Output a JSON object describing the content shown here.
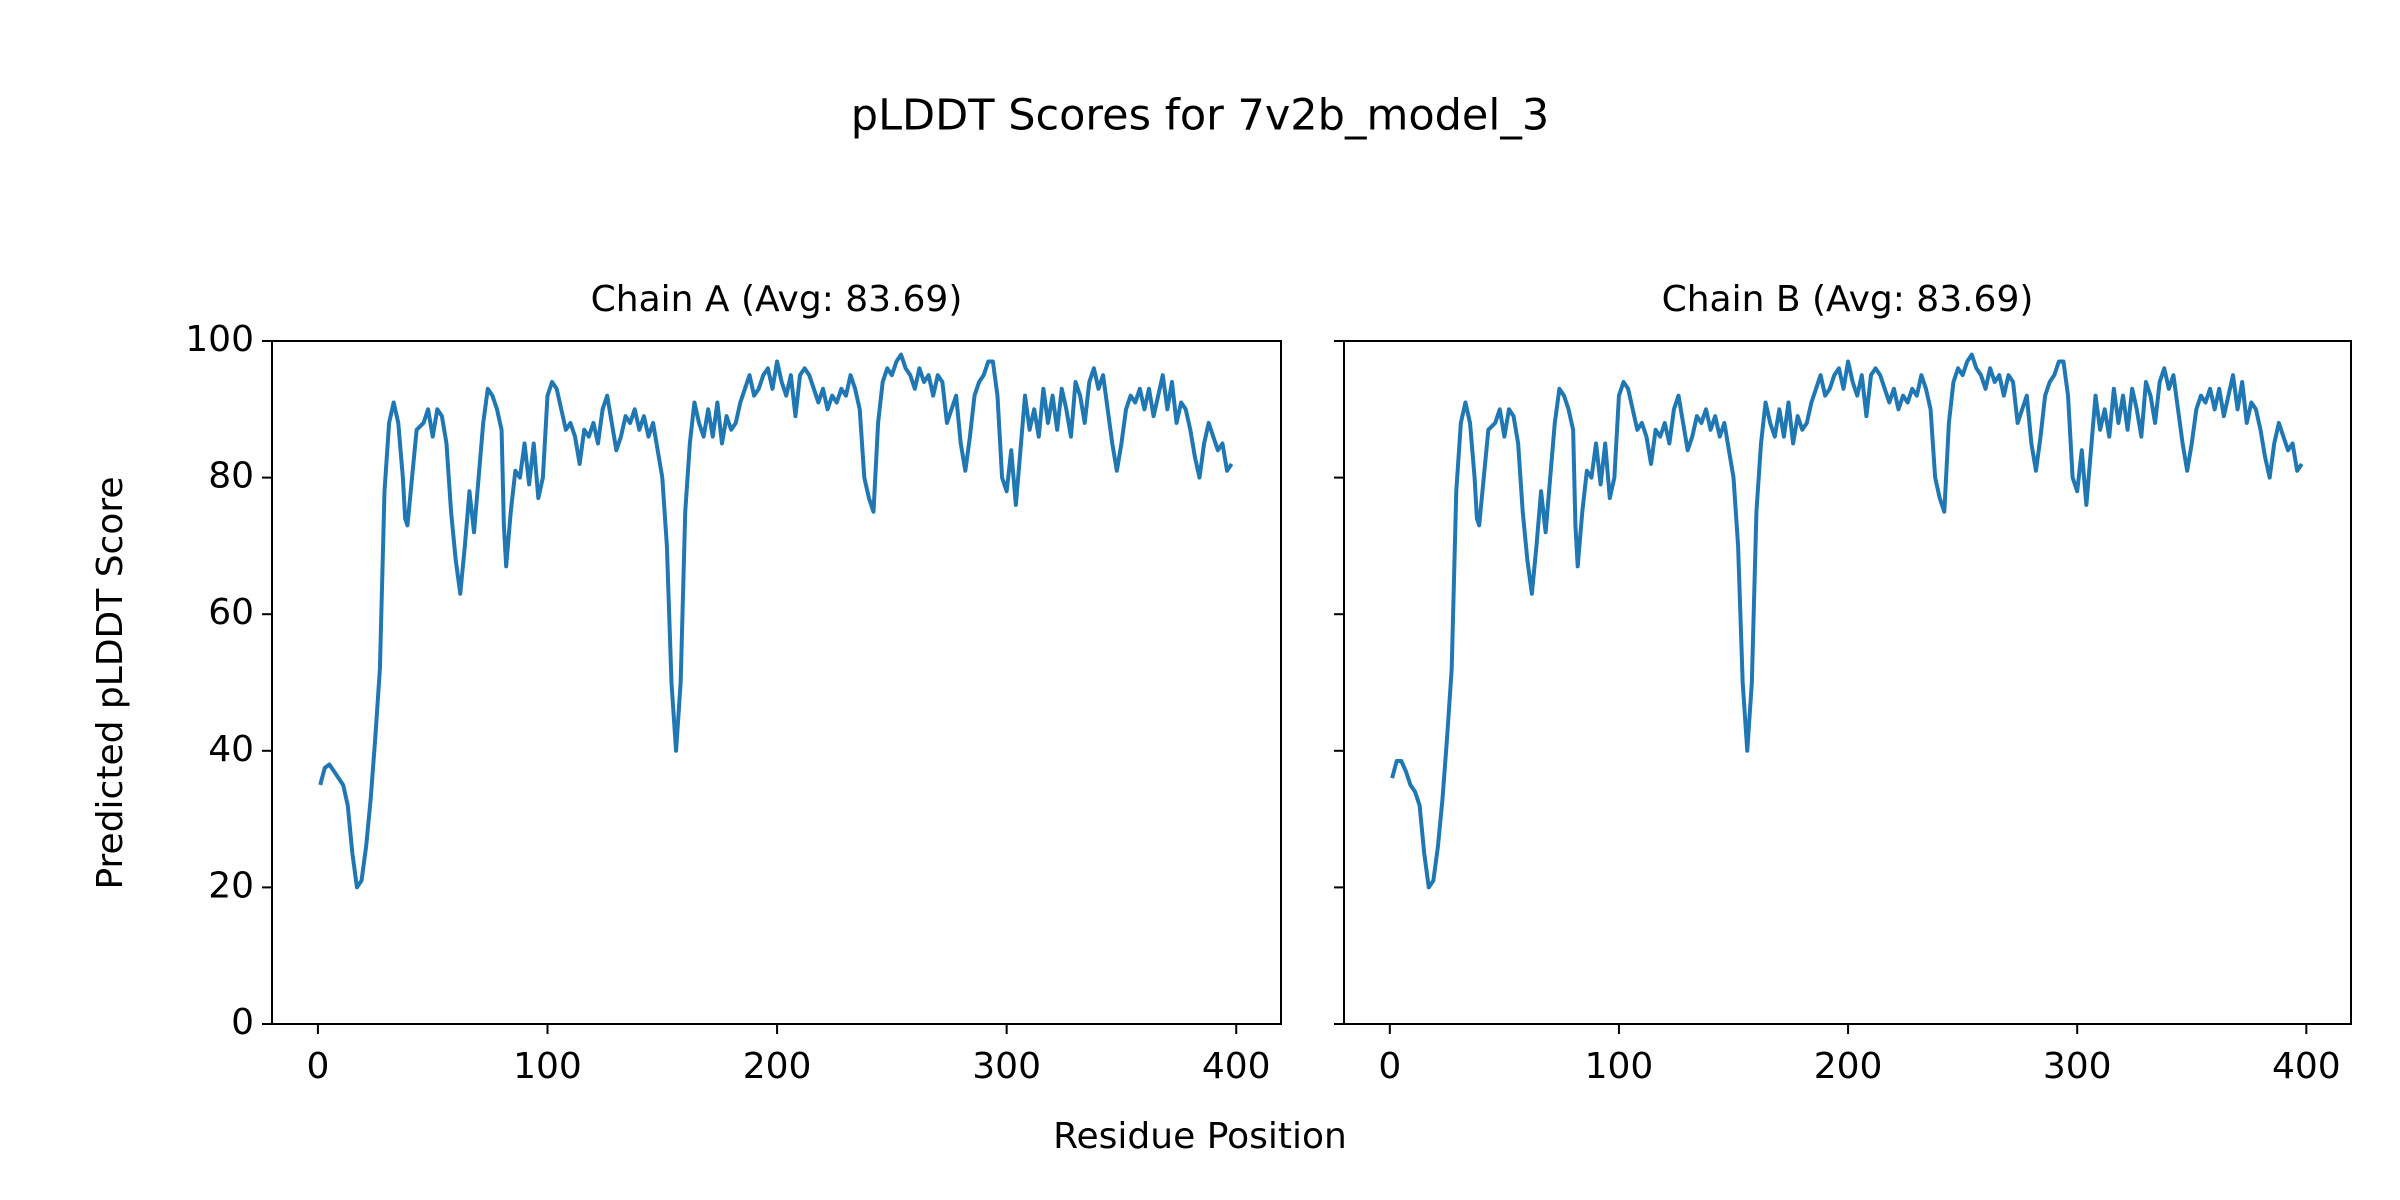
{
  "title": "pLDDT Scores for 7v2b_model_3",
  "xlabel": "Residue Position",
  "ylabel": "Predicted pLDDT Score",
  "chart_data": [
    {
      "type": "line",
      "title": "Chain A (Avg: 83.69)",
      "color": "#1f77b4",
      "x": [
        1,
        3,
        5,
        7,
        9,
        11,
        13,
        15,
        17,
        19,
        21,
        23,
        25,
        27,
        29,
        31,
        33,
        35,
        37,
        38,
        39,
        41,
        43,
        46,
        48,
        50,
        52,
        54,
        56,
        58,
        60,
        62,
        64,
        66,
        68,
        70,
        72,
        74,
        76,
        78,
        80,
        81,
        82,
        84,
        86,
        88,
        90,
        92,
        94,
        96,
        98,
        100,
        102,
        104,
        106,
        108,
        110,
        112,
        114,
        116,
        118,
        120,
        122,
        124,
        126,
        128,
        130,
        132,
        134,
        136,
        138,
        140,
        142,
        144,
        146,
        148,
        150,
        152,
        154,
        156,
        158,
        160,
        162,
        164,
        166,
        168,
        170,
        172,
        174,
        176,
        178,
        180,
        182,
        184,
        186,
        188,
        190,
        192,
        194,
        196,
        198,
        200,
        202,
        204,
        206,
        208,
        210,
        212,
        214,
        216,
        218,
        220,
        222,
        224,
        226,
        228,
        230,
        232,
        234,
        236,
        238,
        240,
        242,
        244,
        246,
        248,
        250,
        252,
        254,
        256,
        258,
        260,
        262,
        264,
        266,
        268,
        270,
        272,
        274,
        276,
        278,
        280,
        282,
        284,
        286,
        288,
        290,
        292,
        294,
        296,
        298,
        300,
        302,
        304,
        306,
        308,
        310,
        312,
        314,
        316,
        318,
        320,
        322,
        324,
        326,
        328,
        330,
        332,
        334,
        336,
        338,
        340,
        342,
        344,
        346,
        348,
        350,
        352,
        354,
        356,
        358,
        360,
        362,
        364,
        366,
        368,
        370,
        372,
        374,
        376,
        378,
        380,
        382,
        384,
        386,
        388,
        390,
        392,
        394,
        396,
        398
      ],
      "values": [
        35,
        37.5,
        38,
        37,
        36,
        35,
        32,
        25,
        20,
        21,
        26,
        33,
        42,
        52,
        78,
        88,
        91,
        88,
        80,
        74,
        73,
        80,
        87,
        88,
        90,
        86,
        90,
        89,
        85,
        75,
        68,
        63,
        70,
        78,
        72,
        80,
        88,
        93,
        92,
        90,
        87,
        73,
        67,
        75,
        81,
        80,
        85,
        79,
        85,
        77,
        80,
        92,
        94,
        93,
        90,
        87,
        88,
        86,
        82,
        87,
        86,
        88,
        85,
        90,
        92,
        88,
        84,
        86,
        89,
        88,
        90,
        87,
        89,
        86,
        88,
        84,
        80,
        70,
        50,
        40,
        50,
        75,
        85,
        91,
        88,
        86,
        90,
        86,
        91,
        85,
        89,
        87,
        88,
        91,
        93,
        95,
        92,
        93,
        95,
        96,
        93,
        97,
        94,
        92,
        95,
        89,
        95,
        96,
        95,
        93,
        91,
        93,
        90,
        92,
        91,
        93,
        92,
        95,
        93,
        90,
        80,
        77,
        75,
        88,
        94,
        96,
        95,
        97,
        98,
        96,
        95,
        93,
        96,
        94,
        95,
        92,
        95,
        94,
        88,
        90,
        92,
        85,
        81,
        86,
        92,
        94,
        95,
        97,
        97,
        92,
        80,
        78,
        84,
        76,
        84,
        92,
        87,
        90,
        86,
        93,
        88,
        92,
        87,
        93,
        90,
        86,
        94,
        92,
        88,
        94,
        96,
        93,
        95,
        90,
        85,
        81,
        85,
        90,
        92,
        91,
        93,
        90,
        93,
        89,
        92,
        95,
        90,
        94,
        88,
        91,
        90,
        87,
        83,
        80,
        85,
        88,
        86,
        84,
        85,
        81,
        82
      ],
      "xlim": [
        -20,
        419.5
      ],
      "ylim": [
        0,
        100
      ],
      "xticks": [
        0,
        100,
        200,
        300,
        400
      ],
      "yticks": [
        0,
        20,
        40,
        60,
        80,
        100
      ],
      "show_ytick_labels": true
    },
    {
      "type": "line",
      "title": "Chain B (Avg: 83.69)",
      "color": "#1f77b4",
      "x": [
        1,
        3,
        5,
        7,
        9,
        11,
        13,
        15,
        17,
        19,
        21,
        23,
        25,
        27,
        29,
        31,
        33,
        35,
        37,
        38,
        39,
        41,
        43,
        46,
        48,
        50,
        52,
        54,
        56,
        58,
        60,
        62,
        64,
        66,
        68,
        70,
        72,
        74,
        76,
        78,
        80,
        81,
        82,
        84,
        86,
        88,
        90,
        92,
        94,
        96,
        98,
        100,
        102,
        104,
        106,
        108,
        110,
        112,
        114,
        116,
        118,
        120,
        122,
        124,
        126,
        128,
        130,
        132,
        134,
        136,
        138,
        140,
        142,
        144,
        146,
        148,
        150,
        152,
        154,
        156,
        158,
        160,
        162,
        164,
        166,
        168,
        170,
        172,
        174,
        176,
        178,
        180,
        182,
        184,
        186,
        188,
        190,
        192,
        194,
        196,
        198,
        200,
        202,
        204,
        206,
        208,
        210,
        212,
        214,
        216,
        218,
        220,
        222,
        224,
        226,
        228,
        230,
        232,
        234,
        236,
        238,
        240,
        242,
        244,
        246,
        248,
        250,
        252,
        254,
        256,
        258,
        260,
        262,
        264,
        266,
        268,
        270,
        272,
        274,
        276,
        278,
        280,
        282,
        284,
        286,
        288,
        290,
        292,
        294,
        296,
        298,
        300,
        302,
        304,
        306,
        308,
        310,
        312,
        314,
        316,
        318,
        320,
        322,
        324,
        326,
        328,
        330,
        332,
        334,
        336,
        338,
        340,
        342,
        344,
        346,
        348,
        350,
        352,
        354,
        356,
        358,
        360,
        362,
        364,
        366,
        368,
        370,
        372,
        374,
        376,
        378,
        380,
        382,
        384,
        386,
        388,
        390,
        392,
        394,
        396,
        398
      ],
      "values": [
        36,
        38.5,
        38.5,
        37,
        35,
        34,
        32,
        25,
        20,
        21,
        26,
        33,
        42,
        52,
        78,
        88,
        91,
        88,
        80,
        74,
        73,
        80,
        87,
        88,
        90,
        86,
        90,
        89,
        85,
        75,
        68,
        63,
        70,
        78,
        72,
        80,
        88,
        93,
        92,
        90,
        87,
        73,
        67,
        75,
        81,
        80,
        85,
        79,
        85,
        77,
        80,
        92,
        94,
        93,
        90,
        87,
        88,
        86,
        82,
        87,
        86,
        88,
        85,
        90,
        92,
        88,
        84,
        86,
        89,
        88,
        90,
        87,
        89,
        86,
        88,
        84,
        80,
        70,
        50,
        40,
        50,
        75,
        85,
        91,
        88,
        86,
        90,
        86,
        91,
        85,
        89,
        87,
        88,
        91,
        93,
        95,
        92,
        93,
        95,
        96,
        93,
        97,
        94,
        92,
        95,
        89,
        95,
        96,
        95,
        93,
        91,
        93,
        90,
        92,
        91,
        93,
        92,
        95,
        93,
        90,
        80,
        77,
        75,
        88,
        94,
        96,
        95,
        97,
        98,
        96,
        95,
        93,
        96,
        94,
        95,
        92,
        95,
        94,
        88,
        90,
        92,
        85,
        81,
        86,
        92,
        94,
        95,
        97,
        97,
        92,
        80,
        78,
        84,
        76,
        84,
        92,
        87,
        90,
        86,
        93,
        88,
        92,
        87,
        93,
        90,
        86,
        94,
        92,
        88,
        94,
        96,
        93,
        95,
        90,
        85,
        81,
        85,
        90,
        92,
        91,
        93,
        90,
        93,
        89,
        92,
        95,
        90,
        94,
        88,
        91,
        90,
        87,
        83,
        80,
        85,
        88,
        86,
        84,
        85,
        81,
        82
      ],
      "xlim": [
        -20,
        419.5
      ],
      "ylim": [
        0,
        100
      ],
      "xticks": [
        0,
        100,
        200,
        300,
        400
      ],
      "yticks": [
        0,
        20,
        40,
        60,
        80,
        100
      ],
      "show_ytick_labels": false
    }
  ]
}
